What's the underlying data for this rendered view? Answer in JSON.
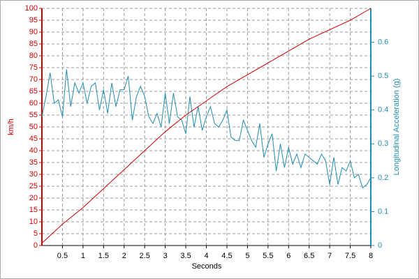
{
  "chart_data": {
    "type": "line",
    "xlabel": "Seconds",
    "ylabel": "km/h",
    "y2label": "Longitudinal Acceleration (g)",
    "xlim": [
      0,
      8
    ],
    "xticks": [
      0.5,
      1,
      1.5,
      2,
      2.5,
      3,
      3.5,
      4,
      4.5,
      5,
      5.5,
      6,
      6.5,
      7,
      7.5,
      8
    ],
    "ylim": [
      0,
      100
    ],
    "yticks": [
      0,
      5,
      10,
      15,
      20,
      25,
      30,
      35,
      40,
      45,
      50,
      55,
      60,
      65,
      70,
      75,
      80,
      85,
      90,
      95,
      100
    ],
    "y2lim": [
      0,
      0.7
    ],
    "y2ticks": [
      0,
      0.1,
      0.2,
      0.3,
      0.4,
      0.5,
      0.6
    ],
    "grid": true,
    "ycolor": "#cc0000",
    "y2color": "#1f8db0",
    "series": [
      {
        "color": "#cc0000",
        "axis": "y",
        "x": [
          0,
          0.5,
          1,
          1.5,
          2,
          2.5,
          3,
          3.5,
          4,
          4.5,
          5,
          5.5,
          6,
          6.5,
          7,
          7.5,
          8
        ],
        "values": [
          1,
          9,
          16,
          24,
          32,
          40,
          48,
          55,
          61,
          67,
          72,
          77,
          82,
          87,
          91,
          95,
          100
        ]
      },
      {
        "color": "#1f8db0",
        "axis": "y2",
        "x": [
          0,
          0.1,
          0.2,
          0.3,
          0.4,
          0.5,
          0.6,
          0.7,
          0.8,
          0.9,
          1,
          1.1,
          1.2,
          1.3,
          1.4,
          1.5,
          1.6,
          1.7,
          1.8,
          1.9,
          2,
          2.1,
          2.2,
          2.3,
          2.4,
          2.5,
          2.6,
          2.7,
          2.8,
          2.9,
          3,
          3.1,
          3.2,
          3.3,
          3.4,
          3.5,
          3.6,
          3.7,
          3.8,
          3.9,
          4,
          4.1,
          4.2,
          4.3,
          4.4,
          4.5,
          4.6,
          4.7,
          4.8,
          4.9,
          5,
          5.1,
          5.2,
          5.3,
          5.4,
          5.5,
          5.6,
          5.7,
          5.8,
          5.9,
          6,
          6.1,
          6.2,
          6.3,
          6.4,
          6.5,
          6.6,
          6.7,
          6.8,
          6.9,
          7,
          7.1,
          7.2,
          7.3,
          7.4,
          7.5,
          7.6,
          7.7,
          7.8,
          7.9,
          8
        ],
        "values": [
          0.38,
          0.44,
          0.51,
          0.42,
          0.43,
          0.38,
          0.52,
          0.41,
          0.48,
          0.45,
          0.48,
          0.42,
          0.47,
          0.48,
          0.4,
          0.46,
          0.39,
          0.48,
          0.41,
          0.46,
          0.46,
          0.5,
          0.37,
          0.44,
          0.47,
          0.44,
          0.38,
          0.36,
          0.39,
          0.35,
          0.45,
          0.36,
          0.45,
          0.38,
          0.37,
          0.33,
          0.44,
          0.35,
          0.41,
          0.34,
          0.38,
          0.41,
          0.36,
          0.35,
          0.37,
          0.4,
          0.32,
          0.31,
          0.31,
          0.37,
          0.34,
          0.31,
          0.29,
          0.36,
          0.26,
          0.3,
          0.33,
          0.22,
          0.3,
          0.23,
          0.29,
          0.24,
          0.27,
          0.23,
          0.27,
          0.26,
          0.25,
          0.24,
          0.27,
          0.25,
          0.18,
          0.26,
          0.18,
          0.23,
          0.22,
          0.25,
          0.2,
          0.21,
          0.17,
          0.18,
          0.2
        ]
      }
    ]
  }
}
